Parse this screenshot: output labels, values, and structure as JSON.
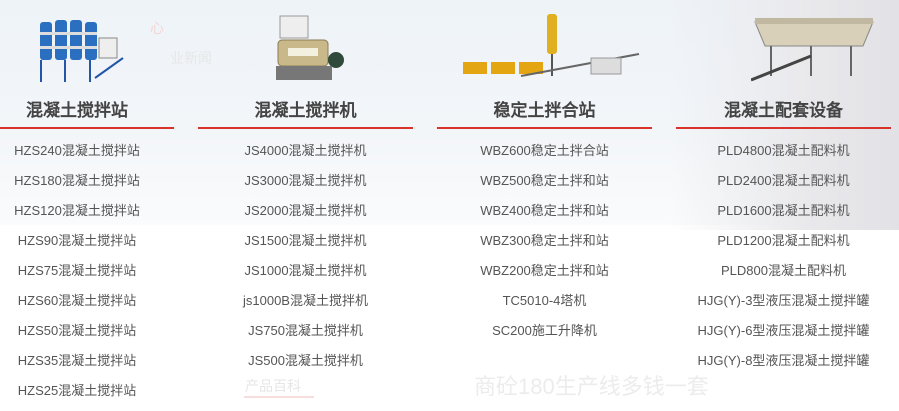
{
  "background_ghost_text": {
    "encyclopedia": "产品百科",
    "news_title": "商砼180生产线多钱一套",
    "center": "心",
    "industry_news": "业新闻"
  },
  "colors": {
    "accent": "#d8322b",
    "title": "#444444",
    "item": "#555555"
  },
  "columns": [
    {
      "title": "混凝土搅拌站",
      "image_icon": "batching-plant-image",
      "items": [
        "HZS240混凝土搅拌站",
        "HZS180混凝土搅拌站",
        "HZS120混凝土搅拌站",
        "HZS90混凝土搅拌站",
        "HZS75混凝土搅拌站",
        "HZS60混凝土搅拌站",
        "HZS50混凝土搅拌站",
        "HZS35混凝土搅拌站",
        "HZS25混凝土搅拌站"
      ]
    },
    {
      "title": "混凝土搅拌机",
      "image_icon": "concrete-mixer-image",
      "items": [
        "JS4000混凝土搅拌机",
        "JS3000混凝土搅拌机",
        "JS2000混凝土搅拌机",
        "JS1500混凝土搅拌机",
        "JS1000混凝土搅拌机",
        "js1000B混凝土搅拌机",
        "JS750混凝土搅拌机",
        "JS500混凝土搅拌机"
      ]
    },
    {
      "title": "稳定土拌合站",
      "image_icon": "soil-mixing-plant-image",
      "items": [
        "WBZ600稳定土拌合站",
        "WBZ500稳定土拌和站",
        "WBZ400稳定土拌和站",
        "WBZ300稳定土拌和站",
        "WBZ200稳定土拌和站",
        "TC5010-4塔机",
        "SC200施工升降机"
      ]
    },
    {
      "title": "混凝土配套设备",
      "image_icon": "batching-machine-image",
      "items": [
        "PLD4800混凝土配料机",
        "PLD2400混凝土配料机",
        "PLD1600混凝土配料机",
        "PLD1200混凝土配料机",
        "PLD800混凝土配料机",
        "HJG(Y)-3型液压混凝土搅拌罐",
        "HJG(Y)-6型液压混凝土搅拌罐",
        "HJG(Y)-8型液压混凝土搅拌罐"
      ]
    }
  ]
}
